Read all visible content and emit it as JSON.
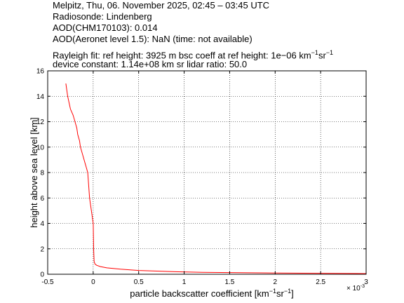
{
  "header": {
    "line1": "Melpitz, Thu, 06. November 2025, 02:45 – 03:45 UTC",
    "line2": "Radiosonde: Lindenberg",
    "line3": "AOD(CHM170103): 0.014",
    "line4": "AOD(Aeronet level 1.5): NaN   (time: not available)",
    "line5a": "Rayleigh fit:     ref height: 3925 m     bsc coeff at ref height: 1e−06 km",
    "line5sup1": "−1",
    "line5mid": "sr",
    "line5sup2": "−1",
    "line6": "device constant: 1.14e+08 km sr     lidar ratio: 50.0"
  },
  "chart_data": {
    "type": "line",
    "xlabel_main": "particle backscatter coefficient [km",
    "xlabel_sup1": "−1",
    "xlabel_mid": "sr",
    "xlabel_sup2": "−1",
    "xlabel_end": "]",
    "ylabel": "height above sea level [km]",
    "x_multiplier": "× 10",
    "x_multiplier_exp": "-3",
    "xlim": [
      -0.5,
      3
    ],
    "ylim": [
      0,
      16
    ],
    "xticks": [
      -0.5,
      0,
      0.5,
      1,
      1.5,
      2,
      2.5,
      3
    ],
    "xtick_labels": [
      "-0.5",
      "0",
      "0.5",
      "1",
      "1.5",
      "2",
      "2.5",
      "3"
    ],
    "yticks": [
      0,
      2,
      4,
      6,
      8,
      10,
      12,
      14,
      16
    ],
    "ytick_labels": [
      "0",
      "2",
      "4",
      "6",
      "8",
      "10",
      "12",
      "14",
      "16"
    ],
    "grid": true,
    "series": [
      {
        "color": "#ff0000",
        "x": [
          3.0,
          2.0,
          1.2,
          0.9,
          0.5,
          0.3,
          0.15,
          0.08,
          0.04,
          0.02,
          0.01,
          0.005,
          0.003,
          0.0,
          -0.02,
          -0.04,
          -0.05,
          -0.06,
          -0.08,
          -0.1,
          -0.12,
          -0.14,
          -0.15,
          -0.17,
          -0.18,
          -0.2,
          -0.22,
          -0.25,
          -0.28,
          -0.3
        ],
        "y": [
          0.05,
          0.1,
          0.15,
          0.2,
          0.3,
          0.4,
          0.5,
          0.6,
          0.7,
          0.8,
          1.0,
          2.0,
          3.0,
          4.0,
          5.0,
          6.0,
          7.0,
          8.0,
          8.5,
          9.0,
          9.5,
          10.0,
          10.5,
          11.0,
          11.5,
          12.0,
          12.5,
          13.0,
          14.0,
          15.0
        ]
      }
    ]
  }
}
